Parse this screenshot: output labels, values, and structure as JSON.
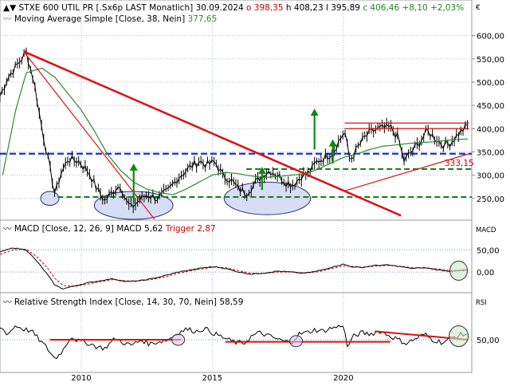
{
  "header": {
    "title": "STXE 600 UTIL PR [.Sx6p LAST Monatlich]",
    "date": "30.09.2024",
    "open": "o 398,35",
    "high": "h 408,23",
    "low": "l 395,89",
    "close": "c 406,46",
    "change": "+8,10",
    "change_pct": "+2,03%",
    "ma_label": "Moving Average Simple",
    "ma_params": "[Close, 38, Nein]",
    "ma_value": "377,65"
  },
  "price_panel": {
    "currency": "€",
    "yticks": [
      250,
      300,
      350,
      400,
      450,
      500,
      550,
      600
    ],
    "ytick_labels": [
      "250,00",
      "300,00",
      "350,00",
      "400,00",
      "450,00",
      "500,00",
      "550,00",
      "600,00"
    ],
    "ylim": [
      205,
      625
    ],
    "support_label": "333,15"
  },
  "macd_panel": {
    "title": "MACD [Close, 12, 26, 9]",
    "value": "MACD 5,62",
    "trigger": "Trigger 2,87",
    "axis_label": "MACD",
    "yticks": [
      0,
      50
    ],
    "ytick_labels": [
      "0,00",
      "50,00"
    ],
    "ylim": [
      -45,
      85
    ]
  },
  "rsi_panel": {
    "title": "Relative Strength Index [Close, 14, 30, 70, Nein]",
    "value": "58,59",
    "axis_label": "RSI",
    "yticks": [
      50
    ],
    "ytick_labels": [
      "50,00"
    ],
    "ylim": [
      5,
      95
    ]
  },
  "x_axis": {
    "labels": [
      "2010",
      "2015",
      "2020"
    ],
    "tick_years": [
      2010,
      2015,
      2020
    ],
    "xlim": [
      2006.9,
      2024.9
    ]
  },
  "colors": {
    "price": "#000000",
    "ma": "#2d8a2d",
    "macd": "#000000",
    "trigger": "#cc0000",
    "trend_red": "#dd1111",
    "support_green": "#1f7a1f",
    "level_blue": "#1a2ed8",
    "arrow_green": "#118811",
    "ellipse_fill": "#c8d2f0",
    "ellipse_stroke": "#26307a"
  },
  "chart_data": {
    "type": "line",
    "price_keypoints": [
      [
        2006.9,
        470
      ],
      [
        2007.2,
        510
      ],
      [
        2007.6,
        540
      ],
      [
        2007.9,
        565
      ],
      [
        2008.2,
        500
      ],
      [
        2008.5,
        400
      ],
      [
        2008.8,
        315
      ],
      [
        2009.0,
        258
      ],
      [
        2009.2,
        300
      ],
      [
        2009.5,
        335
      ],
      [
        2009.9,
        330
      ],
      [
        2010.3,
        305
      ],
      [
        2010.6,
        270
      ],
      [
        2010.9,
        245
      ],
      [
        2011.2,
        265
      ],
      [
        2011.5,
        280
      ],
      [
        2011.7,
        245
      ],
      [
        2011.9,
        230
      ],
      [
        2012.2,
        245
      ],
      [
        2012.5,
        258
      ],
      [
        2012.9,
        250
      ],
      [
        2013.3,
        265
      ],
      [
        2013.7,
        295
      ],
      [
        2014.1,
        315
      ],
      [
        2014.5,
        330
      ],
      [
        2014.8,
        322
      ],
      [
        2015.1,
        328
      ],
      [
        2015.4,
        300
      ],
      [
        2015.7,
        290
      ],
      [
        2016.0,
        270
      ],
      [
        2016.3,
        262
      ],
      [
        2016.6,
        280
      ],
      [
        2016.9,
        300
      ],
      [
        2017.2,
        310
      ],
      [
        2017.5,
        300
      ],
      [
        2017.8,
        285
      ],
      [
        2018.1,
        280
      ],
      [
        2018.4,
        298
      ],
      [
        2018.7,
        305
      ],
      [
        2019.0,
        330
      ],
      [
        2019.3,
        338
      ],
      [
        2019.6,
        350
      ],
      [
        2019.9,
        380
      ],
      [
        2020.05,
        395
      ],
      [
        2020.25,
        330
      ],
      [
        2020.5,
        355
      ],
      [
        2020.8,
        380
      ],
      [
        2021.1,
        395
      ],
      [
        2021.4,
        400
      ],
      [
        2021.8,
        402
      ],
      [
        2022.1,
        380
      ],
      [
        2022.3,
        330
      ],
      [
        2022.6,
        350
      ],
      [
        2022.9,
        370
      ],
      [
        2023.2,
        395
      ],
      [
        2023.5,
        380
      ],
      [
        2023.8,
        365
      ],
      [
        2024.1,
        370
      ],
      [
        2024.4,
        390
      ],
      [
        2024.75,
        406
      ]
    ],
    "ma_keypoints": [
      [
        2007.0,
        300
      ],
      [
        2007.5,
        440
      ],
      [
        2007.9,
        520
      ],
      [
        2008.5,
        530
      ],
      [
        2009.0,
        510
      ],
      [
        2009.5,
        475
      ],
      [
        2010.0,
        440
      ],
      [
        2010.5,
        395
      ],
      [
        2011.0,
        345
      ],
      [
        2011.5,
        310
      ],
      [
        2012.0,
        285
      ],
      [
        2012.5,
        270
      ],
      [
        2013.0,
        262
      ],
      [
        2013.5,
        258
      ],
      [
        2014.0,
        270
      ],
      [
        2014.5,
        285
      ],
      [
        2015.0,
        300
      ],
      [
        2015.5,
        306
      ],
      [
        2016.0,
        303
      ],
      [
        2016.5,
        298
      ],
      [
        2017.0,
        295
      ],
      [
        2017.5,
        297
      ],
      [
        2018.0,
        300
      ],
      [
        2018.5,
        302
      ],
      [
        2019.0,
        312
      ],
      [
        2019.5,
        325
      ],
      [
        2020.0,
        338
      ],
      [
        2020.5,
        345
      ],
      [
        2021.0,
        355
      ],
      [
        2021.5,
        362
      ],
      [
        2022.0,
        365
      ],
      [
        2022.5,
        368
      ],
      [
        2023.0,
        370
      ],
      [
        2023.5,
        372
      ],
      [
        2024.0,
        375
      ],
      [
        2024.75,
        378
      ]
    ],
    "macd_keypoints": [
      [
        2006.9,
        45
      ],
      [
        2007.4,
        55
      ],
      [
        2007.9,
        50
      ],
      [
        2008.3,
        25
      ],
      [
        2008.7,
        -5
      ],
      [
        2009.0,
        -30
      ],
      [
        2009.3,
        -38
      ],
      [
        2009.7,
        -32
      ],
      [
        2010.2,
        -25
      ],
      [
        2010.7,
        -20
      ],
      [
        2011.2,
        -15
      ],
      [
        2011.7,
        -22
      ],
      [
        2012.2,
        -20
      ],
      [
        2012.7,
        -15
      ],
      [
        2013.2,
        -8
      ],
      [
        2013.7,
        0
      ],
      [
        2014.2,
        5
      ],
      [
        2014.7,
        10
      ],
      [
        2015.1,
        12
      ],
      [
        2015.5,
        8
      ],
      [
        2016.0,
        0
      ],
      [
        2016.5,
        -5
      ],
      [
        2017.0,
        -2
      ],
      [
        2017.5,
        2
      ],
      [
        2018.0,
        0
      ],
      [
        2018.5,
        -3
      ],
      [
        2019.0,
        2
      ],
      [
        2019.5,
        10
      ],
      [
        2020.0,
        18
      ],
      [
        2020.3,
        12
      ],
      [
        2020.7,
        10
      ],
      [
        2021.2,
        15
      ],
      [
        2021.7,
        16
      ],
      [
        2022.2,
        12
      ],
      [
        2022.6,
        8
      ],
      [
        2023.1,
        10
      ],
      [
        2023.6,
        5
      ],
      [
        2024.0,
        2
      ],
      [
        2024.4,
        3
      ],
      [
        2024.75,
        5.6
      ]
    ],
    "trigger_keypoints": [
      [
        2006.9,
        40
      ],
      [
        2007.4,
        50
      ],
      [
        2007.9,
        52
      ],
      [
        2008.3,
        35
      ],
      [
        2008.7,
        10
      ],
      [
        2009.0,
        -15
      ],
      [
        2009.3,
        -30
      ],
      [
        2009.7,
        -33
      ],
      [
        2010.2,
        -28
      ],
      [
        2010.7,
        -22
      ],
      [
        2011.2,
        -17
      ],
      [
        2011.7,
        -20
      ],
      [
        2012.2,
        -20
      ],
      [
        2012.7,
        -17
      ],
      [
        2013.2,
        -11
      ],
      [
        2013.7,
        -3
      ],
      [
        2014.2,
        3
      ],
      [
        2014.7,
        8
      ],
      [
        2015.1,
        11
      ],
      [
        2015.5,
        10
      ],
      [
        2016.0,
        3
      ],
      [
        2016.5,
        -3
      ],
      [
        2017.0,
        -3
      ],
      [
        2017.5,
        0
      ],
      [
        2018.0,
        0
      ],
      [
        2018.5,
        -2
      ],
      [
        2019.0,
        0
      ],
      [
        2019.5,
        7
      ],
      [
        2020.0,
        14
      ],
      [
        2020.3,
        13
      ],
      [
        2020.7,
        11
      ],
      [
        2021.2,
        13
      ],
      [
        2021.7,
        15
      ],
      [
        2022.2,
        13
      ],
      [
        2022.6,
        10
      ],
      [
        2023.1,
        9
      ],
      [
        2023.6,
        7
      ],
      [
        2024.0,
        4
      ],
      [
        2024.4,
        3
      ],
      [
        2024.75,
        2.9
      ]
    ],
    "rsi_keypoints": [
      [
        2006.9,
        68
      ],
      [
        2007.2,
        58
      ],
      [
        2007.5,
        70
      ],
      [
        2007.8,
        65
      ],
      [
        2008.1,
        62
      ],
      [
        2008.4,
        50
      ],
      [
        2008.7,
        38
      ],
      [
        2009.0,
        23
      ],
      [
        2009.3,
        35
      ],
      [
        2009.6,
        55
      ],
      [
        2009.9,
        48
      ],
      [
        2010.3,
        45
      ],
      [
        2010.6,
        40
      ],
      [
        2010.9,
        38
      ],
      [
        2011.3,
        52
      ],
      [
        2011.6,
        46
      ],
      [
        2011.9,
        42
      ],
      [
        2012.3,
        50
      ],
      [
        2012.6,
        44
      ],
      [
        2012.9,
        47
      ],
      [
        2013.3,
        50
      ],
      [
        2013.7,
        60
      ],
      [
        2014.0,
        65
      ],
      [
        2014.4,
        62
      ],
      [
        2014.7,
        66
      ],
      [
        2015.0,
        60
      ],
      [
        2015.3,
        55
      ],
      [
        2015.6,
        50
      ],
      [
        2015.9,
        46
      ],
      [
        2016.2,
        45
      ],
      [
        2016.5,
        55
      ],
      [
        2016.8,
        60
      ],
      [
        2017.1,
        56
      ],
      [
        2017.4,
        52
      ],
      [
        2017.7,
        48
      ],
      [
        2018.0,
        46
      ],
      [
        2018.3,
        58
      ],
      [
        2018.6,
        60
      ],
      [
        2018.9,
        64
      ],
      [
        2019.2,
        62
      ],
      [
        2019.5,
        66
      ],
      [
        2019.8,
        68
      ],
      [
        2020.0,
        72
      ],
      [
        2020.15,
        40
      ],
      [
        2020.4,
        55
      ],
      [
        2020.7,
        60
      ],
      [
        2021.0,
        58
      ],
      [
        2021.4,
        62
      ],
      [
        2021.8,
        55
      ],
      [
        2022.1,
        50
      ],
      [
        2022.4,
        45
      ],
      [
        2022.8,
        52
      ],
      [
        2023.1,
        58
      ],
      [
        2023.4,
        50
      ],
      [
        2023.8,
        46
      ],
      [
        2024.1,
        52
      ],
      [
        2024.4,
        56
      ],
      [
        2024.75,
        58.6
      ]
    ],
    "trendlines_red": [
      [
        [
          2007.8,
          566
        ],
        [
          2022.2,
          213
        ]
      ],
      [
        [
          2007.8,
          566
        ],
        [
          2012.8,
          205
        ]
      ],
      [
        [
          2020.05,
          266
        ],
        [
          2024.8,
          346
        ]
      ],
      [
        [
          2020.05,
          412
        ],
        [
          2024.8,
          412
        ]
      ],
      [
        [
          2020.05,
          400
        ],
        [
          2024.8,
          400
        ]
      ]
    ],
    "level_lines": {
      "resistance_blue": 346,
      "support_green_1": 253,
      "support_green_2": 313
    },
    "arrows_up": [
      [
        2012.0,
        238,
        2012.0,
        325
      ],
      [
        2016.9,
        268,
        2016.9,
        318
      ],
      [
        2019.6,
        325,
        2019.6,
        377
      ],
      [
        2018.9,
        355,
        2018.9,
        443
      ]
    ],
    "ellipses": [
      [
        2008.8,
        250,
        0.35,
        15
      ],
      [
        2012.0,
        235,
        1.5,
        30
      ],
      [
        2017.1,
        250,
        1.65,
        35
      ]
    ],
    "rsi_trendlines": [
      [
        [
          2008.8,
          50
        ],
        [
          2013.8,
          50
        ]
      ],
      [
        [
          2015.5,
          47
        ],
        [
          2021.8,
          47
        ]
      ],
      [
        [
          2021.2,
          62
        ],
        [
          2024.75,
          50
        ]
      ]
    ],
    "rsi_ellipses": [
      [
        2013.7,
        50
      ],
      [
        2018.2,
        48
      ],
      [
        2024.4,
        55
      ]
    ],
    "macd_ellipse": [
      2024.4,
      3
    ]
  }
}
